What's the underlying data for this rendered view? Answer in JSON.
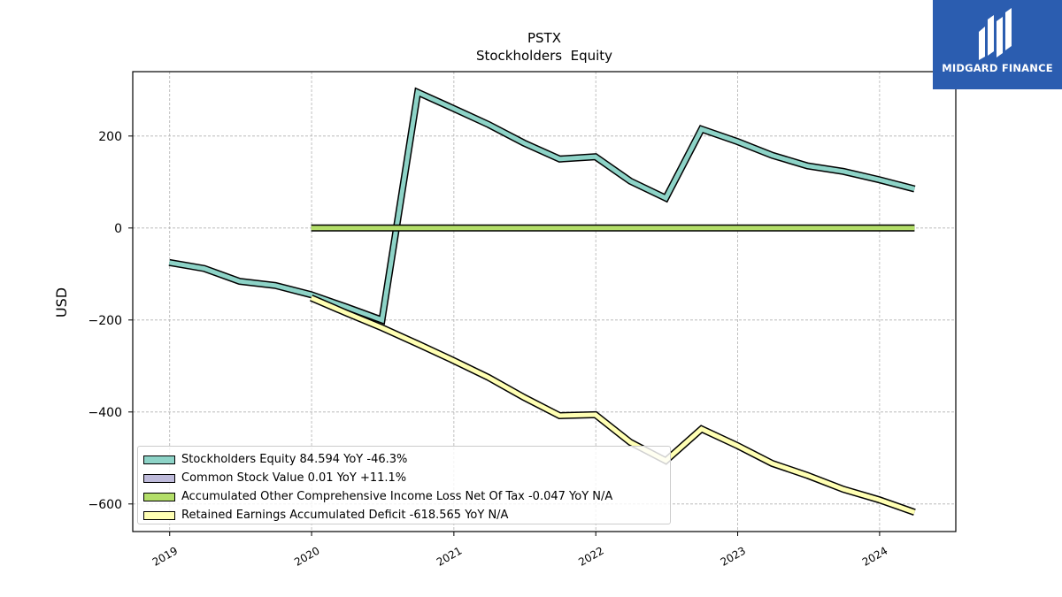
{
  "chart_data": {
    "type": "line",
    "title": "PSTX",
    "subtitle": "Stockholders  Equity",
    "ylabel": "USD",
    "xlabel": "",
    "ylim": [
      -660,
      340
    ],
    "xlim": [
      "2018-09-28",
      "2024-07-15"
    ],
    "yticks": [
      -600,
      -400,
      -200,
      0,
      200
    ],
    "xticks": [
      "2019",
      "2020",
      "2021",
      "2022",
      "2023",
      "2024"
    ],
    "grid": true,
    "legend_position": "lower-left",
    "series": [
      {
        "name": "Stockholders Equity  84.594 YoY -46.3%",
        "color": "#8dd3c7",
        "points": [
          [
            "2018-12-31",
            -75
          ],
          [
            "2019-03-31",
            -88
          ],
          [
            "2019-06-30",
            -116
          ],
          [
            "2019-09-30",
            -125
          ],
          [
            "2019-12-31",
            -145
          ],
          [
            "2020-03-31",
            -172
          ],
          [
            "2020-06-30",
            -200
          ],
          [
            "2020-09-30",
            295
          ],
          [
            "2020-12-31",
            260
          ],
          [
            "2021-03-31",
            225
          ],
          [
            "2021-06-30",
            185
          ],
          [
            "2021-09-30",
            150
          ],
          [
            "2021-12-31",
            155
          ],
          [
            "2022-03-31",
            102
          ],
          [
            "2022-06-30",
            65
          ],
          [
            "2022-09-30",
            215
          ],
          [
            "2022-12-31",
            188
          ],
          [
            "2023-03-31",
            158
          ],
          [
            "2023-06-30",
            135
          ],
          [
            "2023-09-30",
            123
          ],
          [
            "2023-12-31",
            105
          ],
          [
            "2024-03-31",
            85
          ]
        ]
      },
      {
        "name": "Common Stock Value  0.01 YoY +11.1%",
        "color": "#bebada",
        "points": []
      },
      {
        "name": "Accumulated Other Comprehensive Income Loss Net Of Tax  -0.047 YoY N/A",
        "color": "#b3de69",
        "points": [
          [
            "2019-12-31",
            0
          ],
          [
            "2020-12-31",
            0
          ],
          [
            "2021-12-31",
            0
          ],
          [
            "2022-12-31",
            0
          ],
          [
            "2023-12-31",
            0
          ],
          [
            "2024-03-31",
            0
          ]
        ]
      },
      {
        "name": "Retained Earnings Accumulated Deficit  -618.565 YoY N/A",
        "color": "#ffffb3",
        "points": [
          [
            "2019-12-31",
            -152
          ],
          [
            "2020-03-31",
            -185
          ],
          [
            "2020-06-30",
            -217
          ],
          [
            "2020-09-30",
            -252
          ],
          [
            "2020-12-31",
            -288
          ],
          [
            "2021-03-31",
            -325
          ],
          [
            "2021-06-30",
            -368
          ],
          [
            "2021-09-30",
            -408
          ],
          [
            "2021-12-31",
            -406
          ],
          [
            "2022-03-31",
            -466
          ],
          [
            "2022-06-30",
            -506
          ],
          [
            "2022-09-30",
            -437
          ],
          [
            "2022-12-31",
            -473
          ],
          [
            "2023-03-31",
            -512
          ],
          [
            "2023-06-30",
            -538
          ],
          [
            "2023-09-30",
            -568
          ],
          [
            "2023-12-31",
            -591
          ],
          [
            "2024-03-31",
            -618
          ]
        ]
      }
    ]
  },
  "logo": {
    "text": "MIDGARD FINANCE",
    "background": "#2b5db0"
  }
}
